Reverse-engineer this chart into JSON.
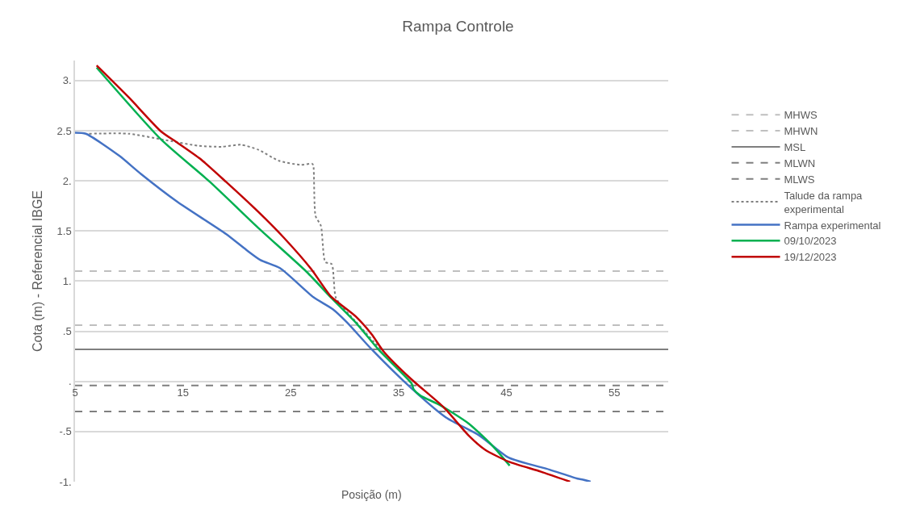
{
  "chart_data": {
    "type": "line",
    "title": "Rampa Controle",
    "xlabel": "Posição (m)",
    "ylabel": "Cota (m) - Referencial IBGE",
    "xlim": [
      5,
      60
    ],
    "xticks": [
      5,
      15,
      25,
      35,
      45,
      55
    ],
    "ylim": [
      -1,
      3.2
    ],
    "yticks": [
      {
        "value": -1,
        "label": "-1."
      },
      {
        "value": -0.5,
        "label": "-.5"
      },
      {
        "value": 0,
        "label": "."
      },
      {
        "value": 0.5,
        "label": ".5"
      },
      {
        "value": 1,
        "label": "1."
      },
      1.5,
      {
        "value": 2,
        "label": "2."
      },
      2.5,
      {
        "value": 3,
        "label": "3."
      }
    ],
    "grid": "y",
    "legend": "right",
    "series": [
      {
        "name": "MHWS",
        "color": "#bfbfbf",
        "line_style": "dashed",
        "x": [
          5,
          60
        ],
        "values": [
          1.1,
          1.1
        ]
      },
      {
        "name": "MHWN",
        "color": "#bfbfbf",
        "line_style": "dashed",
        "x": [
          5,
          60
        ],
        "values": [
          0.56,
          0.56
        ]
      },
      {
        "name": "MSL",
        "color": "#7f7f7f",
        "line_style": "solid",
        "x": [
          5,
          60
        ],
        "values": [
          0.32,
          0.32
        ]
      },
      {
        "name": "MLWN",
        "color": "#7f7f7f",
        "line_style": "dashed",
        "x": [
          5,
          60
        ],
        "values": [
          -0.04,
          -0.04
        ]
      },
      {
        "name": "MLWS",
        "color": "#7f7f7f",
        "line_style": "dashed",
        "x": [
          5,
          60
        ],
        "values": [
          -0.3,
          -0.3
        ]
      },
      {
        "name": "Talude da rampa experimental",
        "color": "#7f7f7f",
        "line_style": "dotted",
        "x": [
          6.3,
          10.0,
          13.2,
          16.4,
          18.6,
          20.4,
          22.0,
          23.9,
          25.9,
          27.0,
          27.1,
          27.3,
          27.8,
          28.2,
          28.8,
          29.2,
          31.0,
          33.5
        ],
        "values": [
          2.47,
          2.47,
          2.41,
          2.35,
          2.34,
          2.36,
          2.31,
          2.2,
          2.16,
          2.17,
          2.15,
          1.65,
          1.55,
          1.19,
          1.17,
          0.83,
          0.6,
          0.3
        ]
      },
      {
        "name": "Rampa experimental",
        "color": "#4472c4",
        "line_style": "solid",
        "x": [
          5,
          6.0,
          9.1,
          11.1,
          14.5,
          19.0,
          20.9,
          22.2,
          24.0,
          27.1,
          28.9,
          30.2,
          32.5,
          36.2,
          39.4,
          42.5,
          45.2,
          49.0,
          51.6,
          52.1,
          52.8
        ],
        "values": [
          2.48,
          2.47,
          2.25,
          2.07,
          1.79,
          1.47,
          1.31,
          1.21,
          1.13,
          0.84,
          0.72,
          0.59,
          0.32,
          -0.07,
          -0.36,
          -0.54,
          -0.76,
          -0.88,
          -0.97,
          -0.98,
          -1.0
        ]
      },
      {
        "name": "09/10/2023",
        "color": "#00b050",
        "line_style": "solid",
        "x": [
          7.0,
          13.0,
          17.5,
          22.0,
          26.5,
          28.7,
          31.0,
          33.2,
          36.2,
          36.4,
          37.0,
          38.9,
          41.5,
          43.7,
          45.3
        ],
        "values": [
          3.13,
          2.41,
          1.99,
          1.53,
          1.09,
          0.84,
          0.59,
          0.31,
          -0.02,
          -0.08,
          -0.14,
          -0.24,
          -0.42,
          -0.64,
          -0.84
        ]
      },
      {
        "name": "19/12/2023",
        "color": "#c00000",
        "line_style": "solid",
        "x": [
          7.0,
          10.0,
          13.0,
          14.5,
          16.6,
          19.0,
          22.0,
          24.3,
          26.9,
          28.7,
          31.0,
          32.5,
          33.6,
          36.2,
          39.2,
          41.5,
          43.0,
          45.2,
          48.2,
          50.9
        ],
        "values": [
          3.15,
          2.83,
          2.49,
          2.38,
          2.22,
          1.99,
          1.69,
          1.44,
          1.12,
          0.85,
          0.65,
          0.47,
          0.3,
          0.02,
          -0.26,
          -0.54,
          -0.68,
          -0.8,
          -0.9,
          -1.0
        ]
      }
    ]
  }
}
